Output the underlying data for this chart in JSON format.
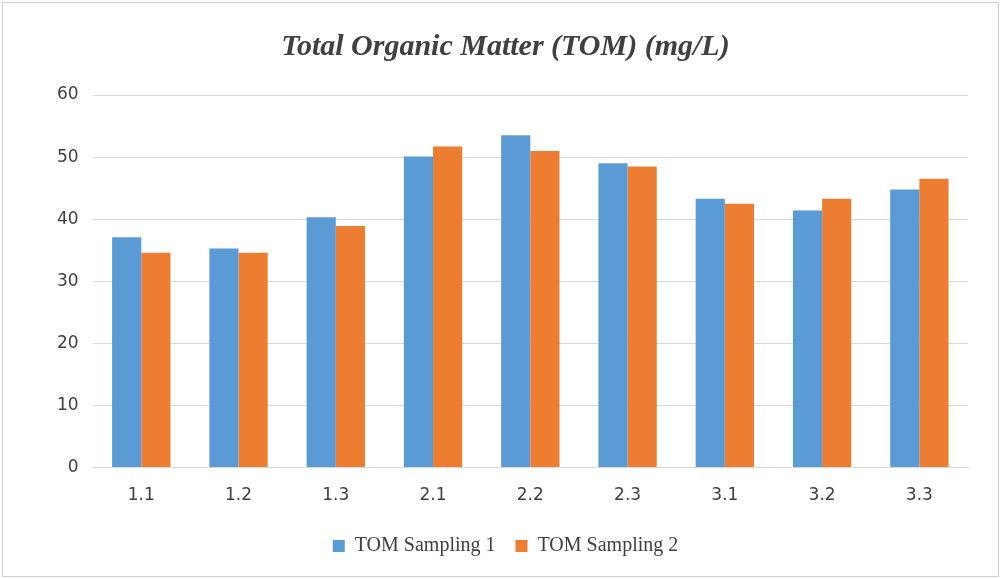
{
  "chart_data": {
    "type": "bar",
    "title": "Total Organic Matter (TOM) (mg/L)",
    "categories": [
      "1.1",
      "1.2",
      "1.3",
      "2.1",
      "2.2",
      "2.3",
      "3.1",
      "3.2",
      "3.3"
    ],
    "series": [
      {
        "name": "TOM Sampling 1",
        "color": "#5b9bd5",
        "values": [
          37.1,
          35.3,
          40.3,
          50.1,
          53.5,
          49.0,
          43.3,
          41.4,
          44.8
        ]
      },
      {
        "name": "TOM Sampling 2",
        "color": "#ed7d31",
        "values": [
          34.6,
          34.6,
          38.9,
          51.7,
          51.0,
          48.5,
          42.5,
          43.3,
          46.5
        ]
      }
    ],
    "ylim": [
      0,
      60
    ],
    "yticks": [
      0,
      10,
      20,
      30,
      40,
      50,
      60
    ],
    "grid": "y",
    "legend": "bottom"
  }
}
